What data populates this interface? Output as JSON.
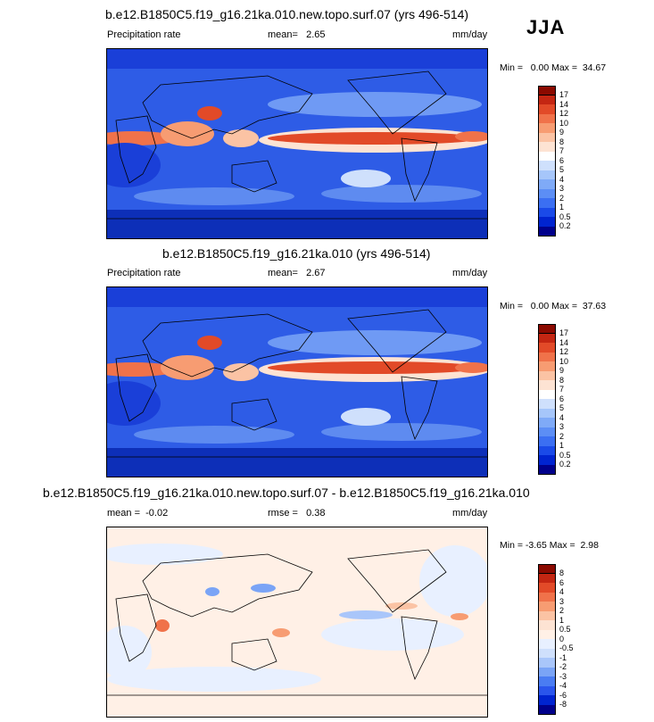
{
  "season": "JJA",
  "colors": {
    "abs_scale": [
      "#00008b",
      "#0024d0",
      "#1a4ae8",
      "#3b6ff2",
      "#5c8ef5",
      "#7faaf7",
      "#a6c6fa",
      "#cfe0fc",
      "#ffffff",
      "#fde3d3",
      "#fbc3a4",
      "#f79c72",
      "#f0724a",
      "#e24a28",
      "#c42612",
      "#8b0a00"
    ],
    "diff_scale": [
      "#00008b",
      "#0024d0",
      "#2a55ec",
      "#4a7cf2",
      "#7aa4f6",
      "#a9c6fa",
      "#cfe0fc",
      "#e8f0ff",
      "#fff0e6",
      "#fde3d3",
      "#fbc3a4",
      "#f79c72",
      "#f0724a",
      "#e24a28",
      "#c42612",
      "#8b0a00"
    ],
    "ocean_base": "#2e5ce6",
    "coast": "#000000"
  },
  "panels": [
    {
      "title": "b.e12.B1850C5.f19_g16.21ka.010.new.topo.surf.07 (yrs 496-514)",
      "left_label": "Precipitation rate",
      "mean_label": "mean=",
      "mean_value": "2.65",
      "units": "mm/day",
      "min_label": "Min =",
      "min_value": "0.00",
      "max_label": "Max =",
      "max_value": "34.67",
      "colorbar_labels": [
        "17",
        "14",
        "12",
        "10",
        "9",
        "8",
        "7",
        "6",
        "5",
        "4",
        "3",
        "2",
        "1",
        "0.5",
        "0.2"
      ]
    },
    {
      "title": "b.e12.B1850C5.f19_g16.21ka.010 (yrs 496-514)",
      "left_label": "Precipitation rate",
      "mean_label": "mean=",
      "mean_value": "2.67",
      "units": "mm/day",
      "min_label": "Min =",
      "min_value": "0.00",
      "max_label": "Max =",
      "max_value": "37.63",
      "colorbar_labels": [
        "17",
        "14",
        "12",
        "10",
        "9",
        "8",
        "7",
        "6",
        "5",
        "4",
        "3",
        "2",
        "1",
        "0.5",
        "0.2"
      ]
    },
    {
      "title": "b.e12.B1850C5.f19_g16.21ka.010.new.topo.surf.07 - b.e12.B1850C5.f19_g16.21ka.010",
      "mean_label": "mean =",
      "mean_value": "-0.02",
      "rmse_label": "rmse =",
      "rmse_value": "0.38",
      "units": "mm/day",
      "min_label": "Min =",
      "min_value": "-3.65",
      "max_label": "Max =",
      "max_value": "2.98",
      "colorbar_labels": [
        "8",
        "6",
        "4",
        "3",
        "2",
        "1",
        "0.5",
        "0",
        "-0.5",
        "-1",
        "-2",
        "-3",
        "-4",
        "-6",
        "-8"
      ]
    }
  ],
  "chart_data": [
    {
      "type": "heatmap",
      "title": "b.e12.B1850C5.f19_g16.21ka.010.new.topo.surf.07 (yrs 496-514)",
      "variable": "Precipitation rate",
      "units": "mm/day",
      "mean": 2.65,
      "min": 0.0,
      "max": 34.67,
      "contour_levels": [
        0.2,
        0.5,
        1,
        2,
        3,
        4,
        5,
        6,
        7,
        8,
        9,
        10,
        12,
        14,
        17
      ]
    },
    {
      "type": "heatmap",
      "title": "b.e12.B1850C5.f19_g16.21ka.010 (yrs 496-514)",
      "variable": "Precipitation rate",
      "units": "mm/day",
      "mean": 2.67,
      "min": 0.0,
      "max": 37.63,
      "contour_levels": [
        0.2,
        0.5,
        1,
        2,
        3,
        4,
        5,
        6,
        7,
        8,
        9,
        10,
        12,
        14,
        17
      ]
    },
    {
      "type": "heatmap",
      "title": "b.e12.B1850C5.f19_g16.21ka.010.new.topo.surf.07 - b.e12.B1850C5.f19_g16.21ka.010",
      "units": "mm/day",
      "mean": -0.02,
      "rmse": 0.38,
      "min": -3.65,
      "max": 2.98,
      "contour_levels": [
        -8,
        -6,
        -4,
        -3,
        -2,
        -1,
        -0.5,
        0,
        0.5,
        1,
        2,
        3,
        4,
        6,
        8
      ]
    }
  ]
}
